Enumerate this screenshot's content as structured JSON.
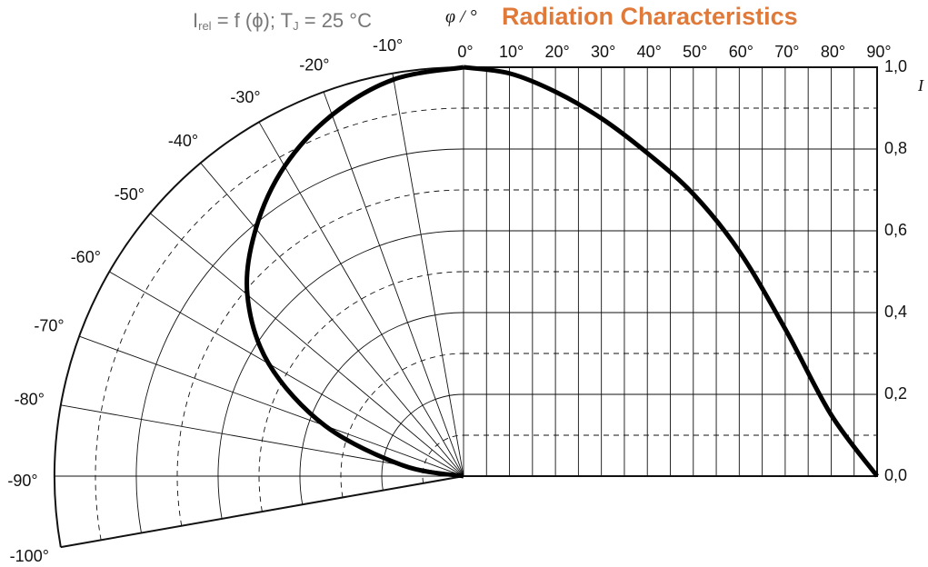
{
  "chart_data": {
    "type": "radiation",
    "title": "Radiation Characteristics",
    "title_color": "#e07a3a",
    "subtitle_parts": [
      "I",
      "rel",
      " = f (ϕ); T",
      "J",
      " = 25 °C"
    ],
    "x_label": "φ / °",
    "y_label": "I",
    "xlim": [
      0,
      90
    ],
    "ylim": [
      0,
      1
    ],
    "xticks": [
      {
        "value": 0,
        "label": "0°"
      },
      {
        "value": 10,
        "label": "10°"
      },
      {
        "value": 20,
        "label": "20°"
      },
      {
        "value": 30,
        "label": "30°"
      },
      {
        "value": 40,
        "label": "40°"
      },
      {
        "value": 50,
        "label": "50°"
      },
      {
        "value": 60,
        "label": "60°"
      },
      {
        "value": 70,
        "label": "70°"
      },
      {
        "value": 80,
        "label": "80°"
      },
      {
        "value": 90,
        "label": "90°"
      }
    ],
    "xgrid": [
      5,
      15,
      25,
      35,
      45,
      55,
      65,
      75,
      85
    ],
    "yticks": [
      {
        "value": 0,
        "label": "0,0"
      },
      {
        "value": 0.2,
        "label": "0,2"
      },
      {
        "value": 0.4,
        "label": "0,4"
      },
      {
        "value": 0.6,
        "label": "0,6"
      },
      {
        "value": 0.8,
        "label": "0,8"
      },
      {
        "value": 1,
        "label": "1,0"
      }
    ],
    "ygrid_dashed": [
      0.1,
      0.3,
      0.5,
      0.7,
      0.9
    ],
    "polar_ticks": [
      {
        "value": -100,
        "label": "-100°"
      },
      {
        "value": -90,
        "label": "-90°"
      },
      {
        "value": -80,
        "label": "-80°"
      },
      {
        "value": -70,
        "label": "-70°"
      },
      {
        "value": -60,
        "label": "-60°"
      },
      {
        "value": -50,
        "label": "-50°"
      },
      {
        "value": -40,
        "label": "-40°"
      },
      {
        "value": -30,
        "label": "-30°"
      },
      {
        "value": -20,
        "label": "-20°"
      },
      {
        "value": -10,
        "label": "-10°"
      }
    ],
    "color": "#000000",
    "x": [
      0,
      10,
      20,
      30,
      40,
      50,
      60,
      70,
      80,
      90
    ],
    "values": [
      1.0,
      0.985,
      0.94,
      0.875,
      0.79,
      0.69,
      0.55,
      0.36,
      0.15,
      0.0
    ]
  }
}
